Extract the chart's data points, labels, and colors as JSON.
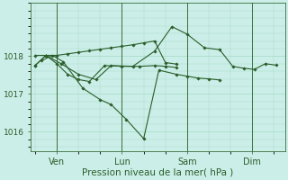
{
  "background_color": "#cceee8",
  "grid_color": "#aaddcc",
  "line_color": "#2a5e2a",
  "marker_color": "#2a5e2a",
  "xlabel": "Pression niveau de la mer( hPa )",
  "xlabel_fontsize": 7.5,
  "ylim": [
    1015.5,
    1019.4
  ],
  "yticks": [
    1016,
    1017,
    1018
  ],
  "xtick_labels": [
    "Ven",
    "Lun",
    "Sam",
    "Dim"
  ],
  "xtick_positions": [
    1,
    4,
    7,
    10
  ],
  "vline_positions": [
    1,
    4,
    7,
    10
  ],
  "series": [
    {
      "x": [
        0.0,
        0.5,
        1.0,
        1.5,
        2.0,
        2.5,
        3.0,
        3.5,
        4.0,
        4.5,
        5.0,
        5.5,
        6.0,
        6.5
      ],
      "y": [
        1017.75,
        1018.0,
        1018.0,
        1018.05,
        1018.1,
        1018.15,
        1018.2,
        1018.25,
        1018.3,
        1018.35,
        1018.4,
        1018.45,
        1017.82,
        1017.78
      ]
    },
    {
      "x": [
        0.0,
        0.5,
        1.0,
        1.5,
        2.0,
        2.5,
        3.2,
        4.0,
        4.8,
        5.5,
        6.0,
        6.5
      ],
      "y": [
        1017.75,
        1018.0,
        1017.8,
        1017.5,
        1017.38,
        1017.32,
        1017.75,
        1017.72,
        1017.72,
        1017.75,
        1017.72,
        1017.68
      ]
    },
    {
      "x": [
        0.3,
        0.8,
        1.3,
        2.2,
        3.0,
        3.5,
        4.2,
        5.0,
        5.7,
        6.5,
        7.0,
        7.5,
        8.0,
        8.5
      ],
      "y": [
        1017.88,
        1018.0,
        1017.85,
        1017.15,
        1016.85,
        1016.7,
        1016.3,
        1015.82,
        1017.62,
        1017.5,
        1017.45,
        1017.4,
        1017.38,
        1017.35
      ]
    },
    {
      "x": [
        0.0,
        0.5,
        1.2,
        2.0,
        2.7,
        3.5,
        4.5,
        5.5,
        6.3,
        7.0,
        7.8,
        8.5,
        9.0,
        9.5,
        10.0,
        10.5,
        11.0
      ],
      "y": [
        1018.0,
        1018.0,
        1017.78,
        1017.5,
        1017.38,
        1017.75,
        1017.72,
        1018.12,
        1018.75,
        1018.55,
        1018.2,
        1018.15,
        1017.7,
        1017.65,
        1017.62,
        1017.78,
        1017.74
      ]
    }
  ]
}
